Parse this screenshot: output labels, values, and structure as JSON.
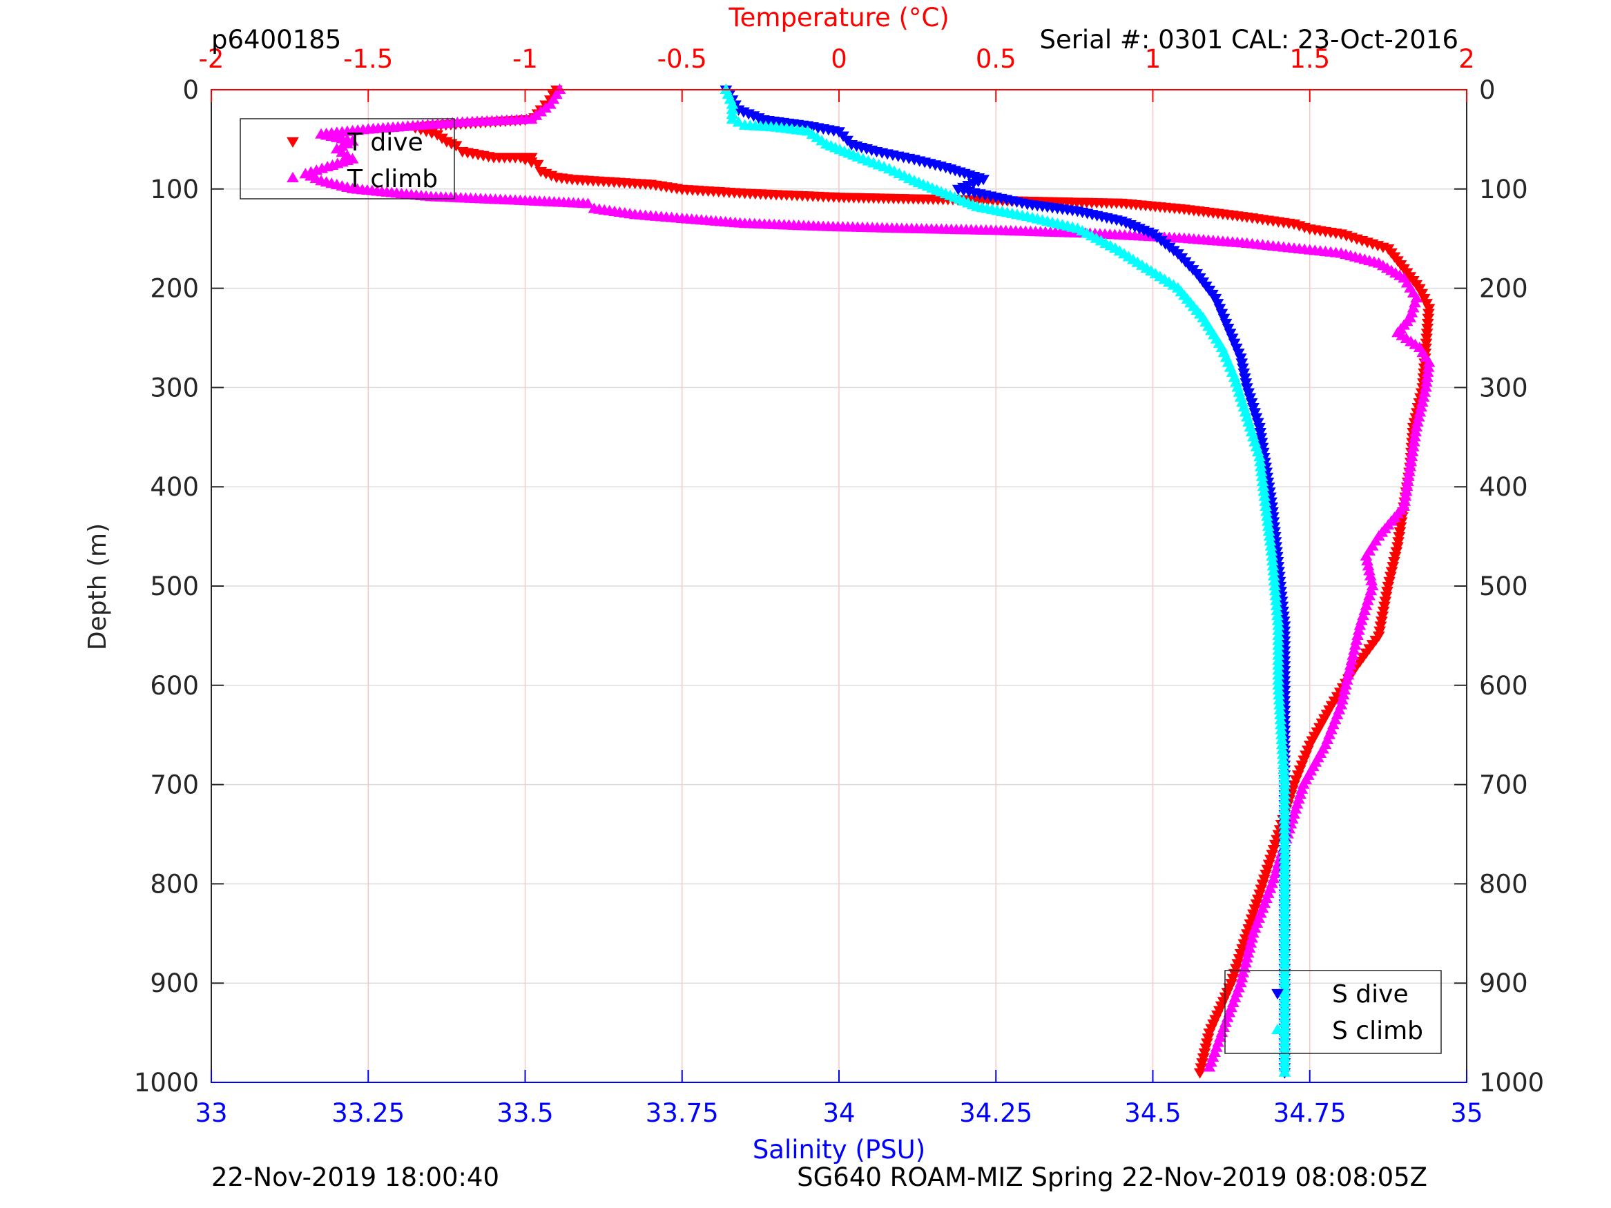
{
  "header": {
    "profile_id": "p6400185",
    "serial_cal": "Serial #: 0301  CAL: 23-Oct-2016"
  },
  "footer": {
    "left": "22-Nov-2019 18:00:40",
    "right": "SG640 ROAM-MIZ Spring 22-Nov-2019 08:08:05Z"
  },
  "colors": {
    "t_dive": "#ff0000",
    "t_climb": "#ff00ff",
    "s_dive": "#0000ff",
    "s_climb": "#00ffff",
    "temp_axis": "#ff0000",
    "sal_axis": "#0000ff"
  },
  "chart_data": {
    "type": "scatter",
    "y_axis": {
      "label": "Depth (m)",
      "range": [
        0,
        1000
      ],
      "reversed": true,
      "ticks": [
        0,
        100,
        200,
        300,
        400,
        500,
        600,
        700,
        800,
        900,
        1000
      ],
      "tick_labels": [
        "0",
        "100",
        "200",
        "300",
        "400",
        "500",
        "600",
        "700",
        "800",
        "900",
        "1000"
      ]
    },
    "temperature_axis": {
      "label": "Temperature (°C)",
      "position": "top",
      "range": [
        -2,
        2
      ],
      "ticks": [
        -2,
        -1.5,
        -1,
        -0.5,
        0,
        0.5,
        1,
        1.5,
        2
      ],
      "tick_labels": [
        "-2",
        "-1.5",
        "-1",
        "-0.5",
        "0",
        "0.5",
        "1",
        "1.5",
        "2"
      ],
      "grid": true
    },
    "salinity_axis": {
      "label": "Salinity (PSU)",
      "position": "bottom",
      "range": [
        33,
        35
      ],
      "ticks": [
        33,
        33.25,
        33.5,
        33.75,
        34,
        34.25,
        34.5,
        34.75,
        35
      ],
      "tick_labels": [
        "33",
        "33.25",
        "33.5",
        "33.75",
        "34",
        "34.25",
        "34.5",
        "34.75",
        "35"
      ]
    },
    "legend_temperature": {
      "placement": "top-left",
      "entries": [
        "T dive",
        "T climb"
      ]
    },
    "legend_salinity": {
      "placement": "bottom-right",
      "entries": [
        "S dive",
        "S climb"
      ]
    },
    "series": [
      {
        "name": "T dive",
        "axis": "temperature",
        "marker": "triangle-down",
        "color": "#ff0000",
        "points": [
          [
            -0.9,
            0
          ],
          [
            -0.92,
            10
          ],
          [
            -0.95,
            20
          ],
          [
            -0.97,
            28
          ],
          [
            -1.0,
            30
          ],
          [
            -1.3,
            36
          ],
          [
            -1.35,
            38
          ],
          [
            -1.28,
            45
          ],
          [
            -1.25,
            52
          ],
          [
            -1.22,
            56
          ],
          [
            -1.2,
            62
          ],
          [
            -1.1,
            68
          ],
          [
            -0.98,
            68
          ],
          [
            -1.0,
            70
          ],
          [
            -0.96,
            75
          ],
          [
            -0.95,
            82
          ],
          [
            -0.9,
            88
          ],
          [
            -0.85,
            90
          ],
          [
            -0.75,
            92
          ],
          [
            -0.6,
            95
          ],
          [
            -0.5,
            100
          ],
          [
            -0.4,
            102
          ],
          [
            -0.3,
            104
          ],
          [
            -0.15,
            106
          ],
          [
            0.0,
            108
          ],
          [
            0.3,
            110
          ],
          [
            0.6,
            112
          ],
          [
            0.9,
            114
          ],
          [
            1.1,
            120
          ],
          [
            1.3,
            128
          ],
          [
            1.45,
            135
          ],
          [
            1.5,
            140
          ],
          [
            1.6,
            145
          ],
          [
            1.65,
            150
          ],
          [
            1.75,
            160
          ],
          [
            1.8,
            180
          ],
          [
            1.85,
            200
          ],
          [
            1.88,
            220
          ],
          [
            1.87,
            260
          ],
          [
            1.86,
            300
          ],
          [
            1.83,
            340
          ],
          [
            1.82,
            380
          ],
          [
            1.8,
            420
          ],
          [
            1.78,
            460
          ],
          [
            1.75,
            500
          ],
          [
            1.72,
            550
          ],
          [
            1.65,
            580
          ],
          [
            1.57,
            620
          ],
          [
            1.5,
            660
          ],
          [
            1.45,
            700
          ],
          [
            1.4,
            750
          ],
          [
            1.35,
            800
          ],
          [
            1.3,
            850
          ],
          [
            1.25,
            900
          ],
          [
            1.18,
            950
          ],
          [
            1.15,
            990
          ]
        ]
      },
      {
        "name": "T climb",
        "axis": "temperature",
        "marker": "triangle-up",
        "color": "#ff00ff",
        "points": [
          [
            -0.89,
            0
          ],
          [
            -0.92,
            15
          ],
          [
            -0.98,
            30
          ],
          [
            -1.2,
            33
          ],
          [
            -1.5,
            40
          ],
          [
            -1.65,
            45
          ],
          [
            -1.55,
            52
          ],
          [
            -1.6,
            60
          ],
          [
            -1.55,
            70
          ],
          [
            -1.63,
            78
          ],
          [
            -1.7,
            85
          ],
          [
            -1.65,
            92
          ],
          [
            -1.55,
            100
          ],
          [
            -1.3,
            108
          ],
          [
            -1.0,
            112
          ],
          [
            -0.8,
            115
          ],
          [
            -0.78,
            120
          ],
          [
            -0.65,
            126
          ],
          [
            -0.5,
            130
          ],
          [
            -0.3,
            135
          ],
          [
            -0.05,
            138
          ],
          [
            0.2,
            140
          ],
          [
            0.5,
            142
          ],
          [
            0.8,
            145
          ],
          [
            1.1,
            150
          ],
          [
            1.3,
            155
          ],
          [
            1.45,
            160
          ],
          [
            1.6,
            165
          ],
          [
            1.72,
            175
          ],
          [
            1.8,
            190
          ],
          [
            1.84,
            210
          ],
          [
            1.82,
            230
          ],
          [
            1.78,
            245
          ],
          [
            1.85,
            260
          ],
          [
            1.88,
            275
          ],
          [
            1.87,
            300
          ],
          [
            1.84,
            340
          ],
          [
            1.82,
            380
          ],
          [
            1.8,
            420
          ],
          [
            1.72,
            450
          ],
          [
            1.68,
            470
          ],
          [
            1.7,
            500
          ],
          [
            1.66,
            540
          ],
          [
            1.63,
            580
          ],
          [
            1.6,
            620
          ],
          [
            1.55,
            660
          ],
          [
            1.48,
            700
          ],
          [
            1.42,
            760
          ],
          [
            1.38,
            800
          ],
          [
            1.32,
            850
          ],
          [
            1.28,
            900
          ],
          [
            1.22,
            950
          ],
          [
            1.18,
            985
          ]
        ]
      },
      {
        "name": "S dive",
        "axis": "salinity",
        "marker": "triangle-down",
        "color": "#0000ff",
        "points": [
          [
            33.82,
            0
          ],
          [
            33.83,
            10
          ],
          [
            33.84,
            20
          ],
          [
            33.88,
            30
          ],
          [
            33.95,
            36
          ],
          [
            34.0,
            42
          ],
          [
            34.02,
            55
          ],
          [
            34.06,
            62
          ],
          [
            34.12,
            70
          ],
          [
            34.17,
            78
          ],
          [
            34.23,
            90
          ],
          [
            34.19,
            100
          ],
          [
            34.25,
            108
          ],
          [
            34.3,
            115
          ],
          [
            34.38,
            122
          ],
          [
            34.45,
            132
          ],
          [
            34.5,
            145
          ],
          [
            34.54,
            165
          ],
          [
            34.57,
            185
          ],
          [
            34.6,
            210
          ],
          [
            34.62,
            240
          ],
          [
            34.64,
            270
          ],
          [
            34.65,
            300
          ],
          [
            34.67,
            340
          ],
          [
            34.68,
            380
          ],
          [
            34.69,
            420
          ],
          [
            34.7,
            480
          ],
          [
            34.71,
            540
          ],
          [
            34.71,
            600
          ],
          [
            34.71,
            700
          ],
          [
            34.71,
            800
          ],
          [
            34.71,
            900
          ],
          [
            34.71,
            990
          ]
        ]
      },
      {
        "name": "S climb",
        "axis": "salinity",
        "marker": "triangle-up",
        "color": "#00ffff",
        "points": [
          [
            33.82,
            0
          ],
          [
            33.83,
            15
          ],
          [
            33.83,
            30
          ],
          [
            33.85,
            36
          ],
          [
            33.9,
            38
          ],
          [
            33.95,
            42
          ],
          [
            33.98,
            55
          ],
          [
            34.03,
            68
          ],
          [
            34.08,
            80
          ],
          [
            34.12,
            92
          ],
          [
            34.17,
            105
          ],
          [
            34.22,
            118
          ],
          [
            34.3,
            128
          ],
          [
            34.38,
            140
          ],
          [
            34.44,
            160
          ],
          [
            34.49,
            180
          ],
          [
            34.54,
            200
          ],
          [
            34.58,
            230
          ],
          [
            34.61,
            260
          ],
          [
            34.63,
            290
          ],
          [
            34.65,
            330
          ],
          [
            34.67,
            370
          ],
          [
            34.68,
            420
          ],
          [
            34.69,
            470
          ],
          [
            34.7,
            540
          ],
          [
            34.7,
            600
          ],
          [
            34.71,
            700
          ],
          [
            34.71,
            800
          ],
          [
            34.71,
            900
          ],
          [
            34.71,
            990
          ]
        ]
      }
    ]
  }
}
